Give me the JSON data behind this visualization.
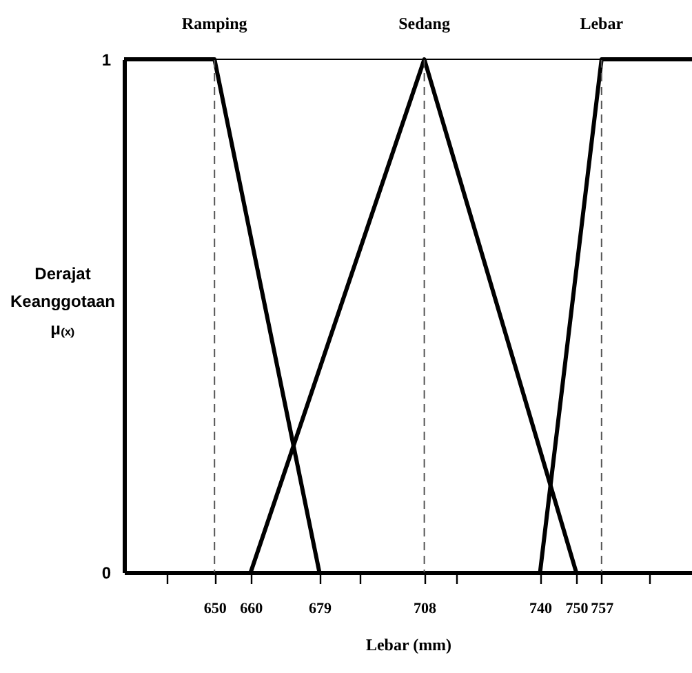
{
  "chart_data": {
    "type": "line",
    "xlabel": "Lebar (mm)",
    "ylabel": "Derajat Keanggotaan μ₍ₓ₎",
    "xlim": [
      625,
      782
    ],
    "ylim": [
      0,
      1
    ],
    "xticks": [
      {
        "value": 637,
        "label": null
      },
      650,
      660,
      679,
      {
        "value": 690,
        "label": null
      },
      708,
      {
        "value": 717,
        "label": null
      },
      740,
      750,
      757,
      {
        "value": 770,
        "label": null
      }
    ],
    "yticks": [
      0,
      1
    ],
    "grid": false,
    "marker": "none",
    "line_style": "solid",
    "series": [
      {
        "name": "Ramping",
        "color": "#000000",
        "x": [
          625,
          650,
          679
        ],
        "values": [
          1,
          1,
          0
        ]
      },
      {
        "name": "Sedang",
        "color": "#000000",
        "x": [
          660,
          708,
          750
        ],
        "values": [
          0,
          1,
          0
        ]
      },
      {
        "name": "Lebar",
        "color": "#000000",
        "x": [
          740,
          757,
          782
        ],
        "values": [
          0,
          1,
          1
        ]
      }
    ],
    "ref_lines": [
      {
        "axis": "x",
        "value": 650,
        "line_style": "dashed",
        "color": "#555555"
      },
      {
        "axis": "x",
        "value": 708,
        "line_style": "dashed",
        "color": "#555555"
      },
      {
        "axis": "x",
        "value": 757,
        "line_style": "dashed",
        "color": "#555555"
      },
      {
        "axis": "y",
        "value": 1,
        "line_style": "solid",
        "color": "#000000"
      }
    ]
  }
}
